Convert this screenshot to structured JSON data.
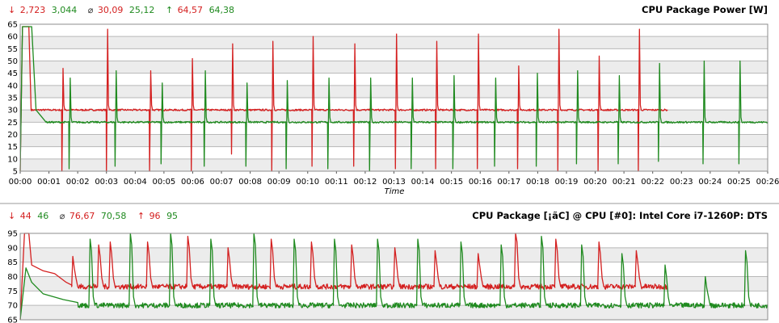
{
  "colors": {
    "red": "#d42020",
    "green": "#1f8a1f",
    "band_light": "#ffffff",
    "band_dark": "#ececec",
    "divider": "#9a9a9a"
  },
  "chart_data": [
    {
      "type": "line",
      "title": "CPU Package Power [W]",
      "xlabel": "Time",
      "ylabel": "",
      "xlim_minutes": [
        0,
        26
      ],
      "ylim": [
        5,
        65
      ],
      "yticks": [
        5,
        10,
        15,
        20,
        25,
        30,
        35,
        40,
        45,
        50,
        55,
        60,
        65
      ],
      "xtick_labels": [
        "00:00",
        "00:01",
        "00:02",
        "00:03",
        "00:04",
        "00:05",
        "00:06",
        "00:07",
        "00:08",
        "00:09",
        "00:10",
        "00:11",
        "00:12",
        "00:13",
        "00:14",
        "00:15",
        "00:16",
        "00:17",
        "00:18",
        "00:19",
        "00:20",
        "00:21",
        "00:22",
        "00:23",
        "00:24",
        "00:25",
        "00:26"
      ],
      "stats": {
        "min_symbol": "↓",
        "min_red": "2,723",
        "min_green": "3,044",
        "avg_symbol": "⌀",
        "avg_red": "30,09",
        "avg_green": "25,12",
        "max_symbol": "↑",
        "max_red": "64,57",
        "max_green": "64,38"
      },
      "series": [
        {
          "color": "red",
          "baseline": 30,
          "end_minute": 22.5,
          "intro": [
            [
              0,
              5
            ],
            [
              0.08,
              64
            ],
            [
              0.3,
              64
            ],
            [
              0.38,
              30
            ]
          ],
          "spikes": [
            [
              1.45,
              47,
              4
            ],
            [
              3.0,
              63,
              4
            ],
            [
              4.5,
              46,
              5
            ],
            [
              5.95,
              51,
              4
            ],
            [
              7.35,
              57,
              12
            ],
            [
              8.75,
              58,
              5
            ],
            [
              10.15,
              60,
              7
            ],
            [
              11.6,
              57,
              7
            ],
            [
              13.05,
              61,
              6
            ],
            [
              14.45,
              58,
              6
            ],
            [
              15.9,
              61,
              6
            ],
            [
              17.3,
              48,
              6
            ],
            [
              18.7,
              63,
              5
            ],
            [
              20.1,
              52,
              4
            ],
            [
              21.5,
              63,
              4
            ]
          ]
        },
        {
          "color": "green",
          "baseline": 25,
          "end_minute": 26,
          "intro": [
            [
              0,
              5
            ],
            [
              0.08,
              64
            ],
            [
              0.4,
              64
            ],
            [
              0.55,
              30
            ],
            [
              0.9,
              25
            ]
          ],
          "spikes": [
            [
              1.7,
              43,
              6
            ],
            [
              3.3,
              46,
              7
            ],
            [
              4.9,
              41,
              8
            ],
            [
              6.4,
              46,
              7
            ],
            [
              7.85,
              41,
              7
            ],
            [
              9.25,
              42,
              6
            ],
            [
              10.7,
              43,
              6
            ],
            [
              12.15,
              43,
              5
            ],
            [
              13.6,
              43,
              6
            ],
            [
              15.05,
              44,
              6
            ],
            [
              16.5,
              43,
              7
            ],
            [
              17.95,
              45,
              7
            ],
            [
              19.35,
              46,
              8
            ],
            [
              20.8,
              44,
              8
            ],
            [
              22.2,
              49,
              9
            ],
            [
              23.75,
              50,
              8
            ],
            [
              25.0,
              50,
              8
            ]
          ]
        }
      ]
    },
    {
      "type": "line",
      "title": "CPU Package [¡ãC] @ CPU [#0]: Intel Core i7-1260P: DTS",
      "xlabel": "",
      "ylabel": "",
      "xlim_minutes": [
        0,
        26
      ],
      "ylim": [
        65,
        95
      ],
      "yticks": [
        65,
        70,
        75,
        80,
        85,
        90,
        95
      ],
      "stats": {
        "min_symbol": "↓",
        "min_red": "44",
        "min_green": "46",
        "avg_symbol": "⌀",
        "avg_red": "76,67",
        "avg_green": "70,58",
        "max_symbol": "↑",
        "max_red": "96",
        "max_green": "95"
      },
      "series": [
        {
          "color": "red",
          "end_minute": 22.5,
          "intro": [
            [
              0,
              65
            ],
            [
              0.15,
              95
            ],
            [
              0.3,
              95
            ],
            [
              0.4,
              84
            ],
            [
              0.8,
              82
            ],
            [
              1.2,
              81
            ],
            [
              1.6,
              78
            ],
            [
              1.8,
              77
            ]
          ],
          "baseline": 76.5,
          "spikes": [
            [
              1.8,
              87
            ],
            [
              2.7,
              91
            ],
            [
              3.1,
              92
            ],
            [
              4.4,
              92
            ],
            [
              5.8,
              94
            ],
            [
              7.2,
              90
            ],
            [
              8.7,
              93
            ],
            [
              10.1,
              92
            ],
            [
              11.5,
              91
            ],
            [
              13.0,
              90
            ],
            [
              14.4,
              89
            ],
            [
              15.9,
              88
            ],
            [
              17.2,
              96
            ],
            [
              18.6,
              93
            ],
            [
              20.1,
              92
            ],
            [
              21.4,
              89
            ]
          ]
        },
        {
          "color": "green",
          "end_minute": 26,
          "intro": [
            [
              0,
              65
            ],
            [
              0.2,
              83
            ],
            [
              0.4,
              78
            ],
            [
              0.8,
              74
            ],
            [
              1.5,
              72
            ],
            [
              2.0,
              71
            ]
          ],
          "baseline": 70,
          "spikes": [
            [
              2.4,
              93
            ],
            [
              3.8,
              95
            ],
            [
              5.2,
              95
            ],
            [
              6.6,
              93
            ],
            [
              8.1,
              95
            ],
            [
              9.5,
              93
            ],
            [
              10.9,
              93
            ],
            [
              12.4,
              93
            ],
            [
              13.8,
              93
            ],
            [
              15.3,
              92
            ],
            [
              16.7,
              91
            ],
            [
              18.1,
              94
            ],
            [
              19.5,
              91
            ],
            [
              20.9,
              88
            ],
            [
              22.4,
              84
            ],
            [
              23.8,
              80
            ],
            [
              25.2,
              89
            ]
          ]
        }
      ]
    }
  ]
}
